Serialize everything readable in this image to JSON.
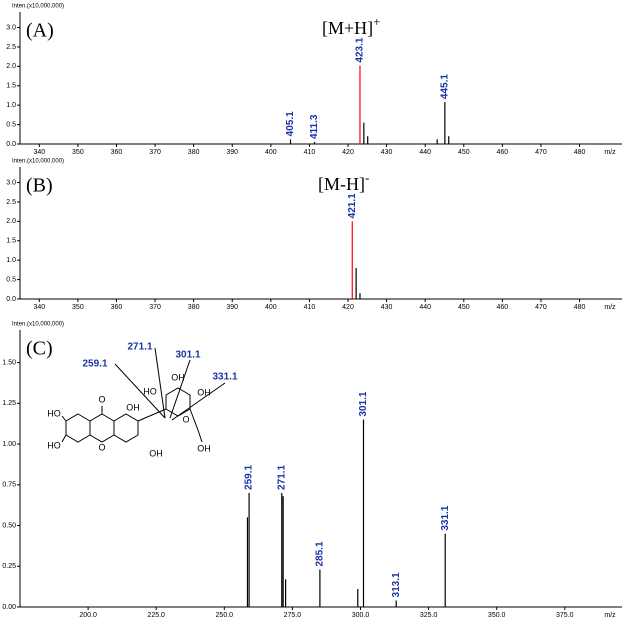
{
  "charts": [
    {
      "type": "stick",
      "panel_label": "(A)",
      "annotation": {
        "text": "[M+H]",
        "sup": "+"
      },
      "y_label": "Inten.(x10,000,000)",
      "x_label": "m/z",
      "xlim": [
        335,
        491
      ],
      "ylim": [
        0,
        3.4
      ],
      "xticks": [
        340,
        350,
        360,
        370,
        380,
        390,
        400,
        410,
        420,
        430,
        440,
        450,
        460,
        470,
        480
      ],
      "yticks": [
        {
          "value": 0,
          "label": "0.0"
        },
        0.5,
        {
          "value": 1,
          "label": "1.0"
        },
        1.5,
        {
          "value": 2,
          "label": "2.0"
        },
        2.5,
        {
          "value": 3,
          "label": "3.0"
        }
      ],
      "series": [
        {
          "color": "#000000",
          "x": [
            405.1,
            411.3,
            424.1,
            425.1,
            443.1,
            445.1,
            446.1
          ],
          "values": [
            0.12,
            0.05,
            0.55,
            0.2,
            0.12,
            1.08,
            0.2
          ],
          "x_labels": [
            "405.1",
            "411.3",
            null,
            null,
            null,
            "445.1",
            null
          ]
        },
        {
          "color": "#ff0000",
          "x": [
            423.1
          ],
          "values": [
            2.02
          ],
          "x_labels": [
            "423.1"
          ]
        }
      ]
    },
    {
      "type": "stick",
      "panel_label": "(B)",
      "annotation": {
        "text": "[M-H]",
        "sup": "-"
      },
      "y_label": "Inten.(x10,000,000)",
      "x_label": "m/z",
      "xlim": [
        335,
        491
      ],
      "ylim": [
        0,
        3.4
      ],
      "xticks": [
        340,
        350,
        360,
        370,
        380,
        390,
        400,
        410,
        420,
        430,
        440,
        450,
        460,
        470,
        480
      ],
      "yticks": [
        {
          "value": 0,
          "label": "0.0"
        },
        0.5,
        {
          "value": 1,
          "label": "1.0"
        },
        1.5,
        {
          "value": 2,
          "label": "2.0"
        },
        2.5,
        {
          "value": 3,
          "label": "3.0"
        }
      ],
      "series": [
        {
          "color": "#000000",
          "x": [
            422.1,
            423.1
          ],
          "values": [
            0.8,
            0.15
          ],
          "x_labels": [
            null,
            null
          ]
        },
        {
          "color": "#ff0000",
          "x": [
            421.1
          ],
          "values": [
            2.0
          ],
          "x_labels": [
            "421.1"
          ]
        }
      ]
    },
    {
      "type": "stick",
      "panel_label": "(C)",
      "fragments": [
        "259.1",
        "271.1",
        "301.1",
        "331.1"
      ],
      "structure_labels": [
        "HO",
        "HO",
        "O",
        "O",
        "OH",
        "OH",
        "HO",
        "OH",
        "OH",
        "O",
        "OH"
      ],
      "y_label": "Inten.(x10,000,000)",
      "x_label": "m/z",
      "xlim": [
        175,
        396
      ],
      "ylim": [
        0,
        1.7
      ],
      "xticks": [
        {
          "value": 200,
          "label": "200.0"
        },
        {
          "value": 225,
          "label": "225.0"
        },
        {
          "value": 250,
          "label": "250.0"
        },
        {
          "value": 275,
          "label": "275.0"
        },
        {
          "value": 300,
          "label": "300.0"
        },
        {
          "value": 325,
          "label": "325.0"
        },
        {
          "value": 350,
          "label": "350.0"
        },
        {
          "value": 375,
          "label": "375.0"
        }
      ],
      "yticks": [
        {
          "value": 0,
          "label": "0.00"
        },
        0.25,
        {
          "value": 0.5,
          "label": "0.50"
        },
        0.75,
        {
          "value": 1,
          "label": "1.00"
        },
        1.25,
        {
          "value": 1.5,
          "label": "1.50"
        }
      ],
      "series": [
        {
          "color": "#000000",
          "x": [
            258.5,
            259.1,
            271.1,
            271.6,
            272.5,
            285.1,
            299.0,
            301.1,
            313.1,
            331.1
          ],
          "values": [
            0.55,
            0.7,
            0.7,
            0.68,
            0.17,
            0.23,
            0.11,
            1.15,
            0.04,
            0.45
          ],
          "x_labels": [
            null,
            "259.1",
            "271.1",
            null,
            null,
            "285.1",
            null,
            "301.1",
            "313.1",
            "331.1"
          ]
        }
      ]
    }
  ]
}
